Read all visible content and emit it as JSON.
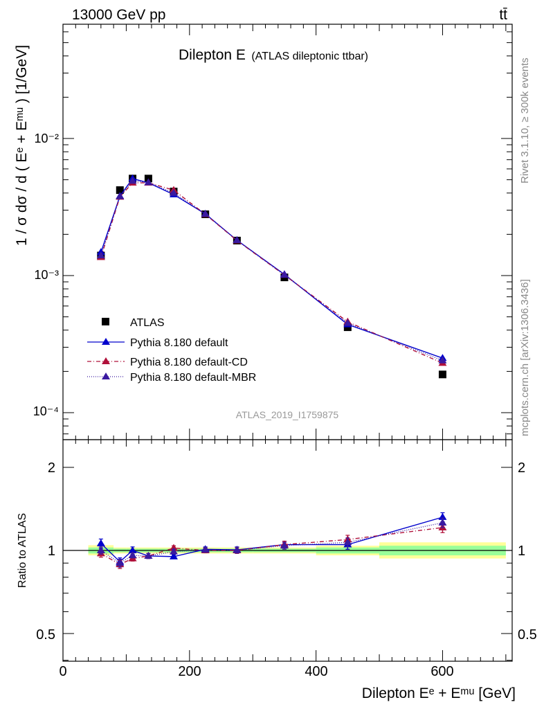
{
  "header": {
    "energy_label": "13000 GeV pp",
    "process_label": "tt̄"
  },
  "side_labels": {
    "rivet": "Rivet 3.1.10, ≥ 300k events",
    "mcplots": "mcplots.cern.ch [arXiv:1306.3436]"
  },
  "chart_data": [
    {
      "type": "scatter",
      "panel": "main",
      "title": "Dilepton E",
      "subtitle": "(ATLAS dileptonic ttbar)",
      "watermark": "ATLAS_2019_I1759875",
      "ylabel": "1 / σ  dσ / d ( Eᵉ + Eᵐᵘ ) [1/GeV]",
      "yscale": "log",
      "ylim": [
        6e-05,
        0.08
      ],
      "xlim": [
        0,
        710
      ],
      "ytick_labels": [
        "10⁻⁴",
        "10⁻³",
        "10⁻²"
      ],
      "legend_position": "middle-left",
      "x": [
        60,
        90,
        110,
        135,
        175,
        225,
        275,
        350,
        450,
        600
      ],
      "series": [
        {
          "name": "ATLAS",
          "color": "#000000",
          "marker": "square",
          "line": "none",
          "values": [
            0.0014,
            0.0042,
            0.0051,
            0.0051,
            0.0041,
            0.0028,
            0.0018,
            0.00097,
            0.00042,
            0.00019
          ]
        },
        {
          "name": "Pythia 8.180 default",
          "color": "#0000cc",
          "marker": "triangle",
          "line": "solid",
          "values": [
            0.00148,
            0.0038,
            0.0051,
            0.00475,
            0.0039,
            0.00282,
            0.00181,
            0.00102,
            0.00044,
            0.00025
          ]
        },
        {
          "name": "Pythia 8.180 default-CD",
          "color": "#b0103a",
          "marker": "triangle",
          "line": "dashdot",
          "values": [
            0.00136,
            0.00375,
            0.00475,
            0.00475,
            0.0042,
            0.0028,
            0.0018,
            0.00101,
            0.00046,
            0.00023
          ]
        },
        {
          "name": "Pythia 8.180 default-MBR",
          "color": "#3a1aa0",
          "marker": "triangle",
          "line": "dotted",
          "values": [
            0.0014,
            0.00378,
            0.0049,
            0.00478,
            0.004,
            0.00281,
            0.00181,
            0.00101,
            0.00045,
            0.00024
          ]
        }
      ]
    },
    {
      "type": "scatter",
      "panel": "ratio",
      "ylabel": "Ratio to ATLAS",
      "xlabel": "Dilepton Eᵉ + Eᵐᵘ [GeV]",
      "yscale": "log",
      "ylim": [
        0.4,
        2.4
      ],
      "xlim": [
        0,
        710
      ],
      "ytick_labels": [
        "0.5",
        "1",
        "2"
      ],
      "xtick_labels": [
        "0",
        "200",
        "400",
        "600"
      ],
      "x": [
        60,
        90,
        110,
        135,
        175,
        225,
        275,
        350,
        450,
        600
      ],
      "bands": [
        {
          "xlo": 40,
          "xhi": 80,
          "inner": [
            0.975,
            1.025
          ],
          "outer": [
            0.96,
            1.045
          ]
        },
        {
          "xlo": 80,
          "xhi": 100,
          "inner": [
            0.985,
            1.015
          ],
          "outer": [
            0.975,
            1.025
          ]
        },
        {
          "xlo": 100,
          "xhi": 120,
          "inner": [
            0.985,
            1.015
          ],
          "outer": [
            0.975,
            1.025
          ]
        },
        {
          "xlo": 120,
          "xhi": 150,
          "inner": [
            0.985,
            1.015
          ],
          "outer": [
            0.975,
            1.025
          ]
        },
        {
          "xlo": 150,
          "xhi": 200,
          "inner": [
            0.985,
            1.015
          ],
          "outer": [
            0.975,
            1.025
          ]
        },
        {
          "xlo": 200,
          "xhi": 250,
          "inner": [
            0.985,
            1.015
          ],
          "outer": [
            0.975,
            1.025
          ]
        },
        {
          "xlo": 250,
          "xhi": 300,
          "inner": [
            0.985,
            1.015
          ],
          "outer": [
            0.975,
            1.025
          ]
        },
        {
          "xlo": 300,
          "xhi": 400,
          "inner": [
            0.985,
            1.015
          ],
          "outer": [
            0.975,
            1.025
          ]
        },
        {
          "xlo": 400,
          "xhi": 500,
          "inner": [
            0.975,
            1.025
          ],
          "outer": [
            0.96,
            1.04
          ]
        },
        {
          "xlo": 500,
          "xhi": 700,
          "inner": [
            0.96,
            1.04
          ],
          "outer": [
            0.935,
            1.07
          ]
        }
      ],
      "series": [
        {
          "name": "Pythia 8.180 default",
          "color": "#0000cc",
          "line": "solid",
          "values": [
            1.06,
            0.91,
            1.0,
            0.955,
            0.95,
            1.01,
            1.005,
            1.05,
            1.05,
            1.32
          ],
          "errors": [
            0.04,
            0.03,
            0.03,
            0.02,
            0.015,
            0.02,
            0.025,
            0.03,
            0.04,
            0.05
          ]
        },
        {
          "name": "Pythia 8.180 default-CD",
          "color": "#b0103a",
          "line": "dashdot",
          "values": [
            0.975,
            0.89,
            0.935,
            0.955,
            1.02,
            1.0,
            1.0,
            1.05,
            1.095,
            1.21
          ],
          "errors": [
            0.03,
            0.03,
            0.02,
            0.02,
            0.02,
            0.02,
            0.025,
            0.03,
            0.04,
            0.05
          ]
        },
        {
          "name": "Pythia 8.180 default-MBR",
          "color": "#3a1aa0",
          "line": "dotted",
          "values": [
            1.0,
            0.9,
            0.96,
            0.955,
            0.99,
            1.005,
            1.003,
            1.04,
            1.07,
            1.26
          ],
          "errors": [
            0.03,
            0.03,
            0.02,
            0.02,
            0.02,
            0.02,
            0.025,
            0.03,
            0.04,
            0.05
          ]
        }
      ]
    }
  ]
}
